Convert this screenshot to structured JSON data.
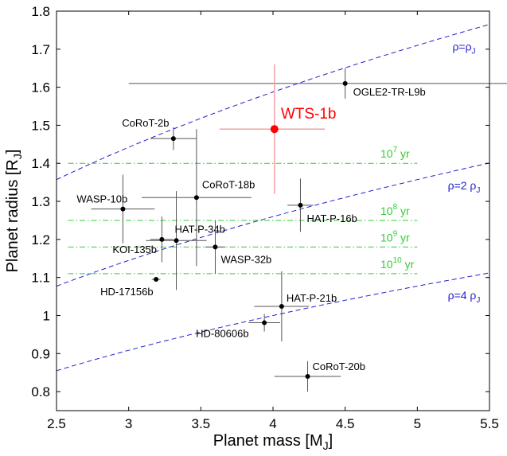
{
  "chart_data": {
    "type": "scatter",
    "xlabel": "Planet mass [M",
    "xlabel_sub": "J",
    "xlabel_close": "]",
    "ylabel": "Planet radius [R",
    "ylabel_sub": "J",
    "ylabel_close": "]",
    "xlim": [
      2.5,
      5.5
    ],
    "ylim": [
      0.75,
      1.8
    ],
    "xticks": [
      "2.5",
      "3",
      "3.5",
      "4",
      "4.5",
      "5",
      "5.5"
    ],
    "yticks": [
      "0.8",
      "0.9",
      "1",
      "1.1",
      "1.2",
      "1.3",
      "1.4",
      "1.5",
      "1.6",
      "1.7",
      "1.8"
    ],
    "highlight": {
      "name": "WTS-1b",
      "x": 4.01,
      "y": 1.49,
      "xerr": [
        0.38,
        0.35
      ],
      "yerr": [
        0.17,
        0.17
      ],
      "color": "#ff0000",
      "errcolor": "#f4a0a0"
    },
    "points": [
      {
        "name": "OGLE2-TR-L9b",
        "x": 4.5,
        "y": 1.61,
        "xerr": [
          1.5,
          1.5
        ],
        "yerr": [
          0.04,
          0.04
        ]
      },
      {
        "name": "CoRoT-2b",
        "x": 3.31,
        "y": 1.465,
        "xerr": [
          0.16,
          0.16
        ],
        "yerr": [
          0.03,
          0.03
        ]
      },
      {
        "name": "CoRoT-18b",
        "x": 3.47,
        "y": 1.31,
        "xerr": [
          0.38,
          0.38
        ],
        "yerr": [
          0.18,
          0.18
        ]
      },
      {
        "name": "WASP-10b",
        "x": 2.96,
        "y": 1.28,
        "xerr": [
          0.22,
          0.22
        ],
        "yerr": [
          0.09,
          0.09
        ]
      },
      {
        "name": "HAT-P-16b",
        "x": 4.19,
        "y": 1.29,
        "xerr": [
          0.09,
          0.09
        ],
        "yerr": [
          0.07,
          0.07
        ]
      },
      {
        "name": "HAT-P-34b",
        "x": 3.33,
        "y": 1.197,
        "xerr": [
          0.21,
          0.21
        ],
        "yerr": [
          0.13,
          0.13
        ]
      },
      {
        "name": "KOI-135b",
        "x": 3.23,
        "y": 1.2,
        "xerr": [
          0.08,
          0.08
        ],
        "yerr": [
          0.06,
          0.06
        ]
      },
      {
        "name": "WASP-32b",
        "x": 3.6,
        "y": 1.18,
        "xerr": [
          0.07,
          0.07
        ],
        "yerr": [
          0.07,
          0.07
        ]
      },
      {
        "name": "HD-17156b",
        "x": 3.19,
        "y": 1.095,
        "xerr": [
          0.03,
          0.03
        ],
        "yerr": [
          0.0,
          0.0
        ]
      },
      {
        "name": "HAT-P-21b",
        "x": 4.06,
        "y": 1.024,
        "xerr": [
          0.19,
          0.19
        ],
        "yerr": [
          0.092,
          0.092
        ]
      },
      {
        "name": "HD-80606b",
        "x": 3.94,
        "y": 0.981,
        "xerr": [
          0.11,
          0.11
        ],
        "yerr": [
          0.023,
          0.023
        ]
      },
      {
        "name": "CoRoT-20b",
        "x": 4.24,
        "y": 0.84,
        "xerr": [
          0.23,
          0.23
        ],
        "yerr": [
          0.04,
          0.04
        ]
      }
    ],
    "isochrones": [
      {
        "label": "10",
        "sup": "7",
        "unit": " yr",
        "y": 1.4
      },
      {
        "label": "10",
        "sup": "8",
        "unit": " yr",
        "y": 1.25
      },
      {
        "label": "10",
        "sup": "9",
        "unit": " yr",
        "y": 1.18
      },
      {
        "label": "10",
        "sup": "10",
        "unit": " yr",
        "y": 1.11
      }
    ],
    "density_curves": [
      {
        "label": "ρ=ρ",
        "sub": "J",
        "factor": 1
      },
      {
        "label": "ρ=2 ρ",
        "sub": "J",
        "factor": 2
      },
      {
        "label": "ρ=4 ρ",
        "sub": "J",
        "factor": 4
      }
    ],
    "colors": {
      "points": "#000000",
      "errbars": "#555555",
      "isochrone": "#33cc33",
      "density": "#2222cc"
    }
  }
}
